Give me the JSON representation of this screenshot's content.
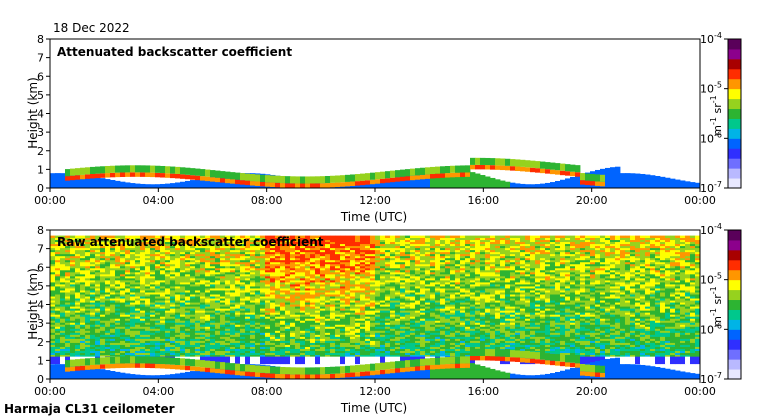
{
  "page": {
    "date": "18 Dec 2022",
    "footer": "Harmaja CL31 ceilometer"
  },
  "colors": {
    "background": "#ffffff",
    "axis": "#000000",
    "colormap": [
      "#e8e8ff",
      "#b9b9ff",
      "#6f6fff",
      "#2f2fff",
      "#0064ff",
      "#00b4e6",
      "#00c88c",
      "#2db432",
      "#96d21e",
      "#ffff00",
      "#ff9600",
      "#ff2d00",
      "#a80000",
      "#8c008c",
      "#5a005a"
    ]
  },
  "chart_data": [
    {
      "type": "heatmap",
      "title": "Attenuated backscatter coefficient",
      "xlabel": "Time (UTC)",
      "ylabel": "Height (km)",
      "xlim": [
        0,
        24
      ],
      "ylim": [
        0,
        8
      ],
      "x_ticks": [
        0,
        4,
        8,
        12,
        16,
        20,
        24
      ],
      "x_tick_labels": [
        "00:00",
        "04:00",
        "08:00",
        "12:00",
        "16:00",
        "20:00",
        "00:00"
      ],
      "y_ticks": [
        0,
        1,
        2,
        3,
        4,
        5,
        6,
        7,
        8
      ],
      "y_tick_labels": [
        "0",
        "1",
        "2",
        "3",
        "4",
        "5",
        "6",
        "7",
        "8"
      ],
      "colorbar": {
        "label_base": "m",
        "label_exp1": "-1",
        "label_mid": "sr",
        "label_exp2": "-1",
        "scale": "log",
        "range": [
          1e-07,
          0.0001
        ],
        "ticks": [
          {
            "value": 0.0001,
            "base": "10",
            "exp": "-4"
          },
          {
            "value": 1e-05,
            "base": "10",
            "exp": "-5"
          },
          {
            "value": 1e-06,
            "base": "10",
            "exp": "-6"
          },
          {
            "value": 1e-07,
            "base": "10",
            "exp": "-7"
          }
        ]
      },
      "layers": {
        "surface_layer_top_km": [
          0.2,
          0.8
        ],
        "cloud_layer_height_km": 0.6,
        "noise_ceiling_km": 0
      }
    },
    {
      "type": "heatmap",
      "title": "Raw attenuated backscatter coefficient",
      "xlabel": "Time (UTC)",
      "ylabel": "Height (km)",
      "xlim": [
        0,
        24
      ],
      "ylim": [
        0,
        8
      ],
      "x_ticks": [
        0,
        4,
        8,
        12,
        16,
        20,
        24
      ],
      "x_tick_labels": [
        "00:00",
        "04:00",
        "08:00",
        "12:00",
        "16:00",
        "20:00",
        "00:00"
      ],
      "y_ticks": [
        0,
        1,
        2,
        3,
        4,
        5,
        6,
        7,
        8
      ],
      "y_tick_labels": [
        "0",
        "1",
        "2",
        "3",
        "4",
        "5",
        "6",
        "7",
        "8"
      ],
      "colorbar": {
        "label_base": "m",
        "label_exp1": "-1",
        "label_mid": "sr",
        "label_exp2": "-1",
        "scale": "log",
        "range": [
          1e-07,
          0.0001
        ],
        "ticks": [
          {
            "value": 0.0001,
            "base": "10",
            "exp": "-4"
          },
          {
            "value": 1e-05,
            "base": "10",
            "exp": "-5"
          },
          {
            "value": 1e-06,
            "base": "10",
            "exp": "-6"
          },
          {
            "value": 1e-07,
            "base": "10",
            "exp": "-7"
          }
        ]
      },
      "layers": {
        "surface_layer_top_km": [
          0.2,
          0.8
        ],
        "cloud_layer_height_km": 0.6,
        "noise_ceiling_km": 7.7
      }
    }
  ]
}
